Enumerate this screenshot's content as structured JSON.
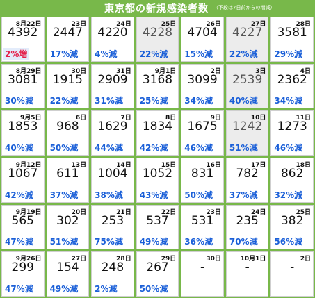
{
  "title": "東京都の新規感染者数",
  "subtitle": "（下段は7日前からの増減）",
  "colors": {
    "background": "#78b84a",
    "decrease": "#1a5fd8",
    "increase": "#e5204a"
  },
  "cells": [
    {
      "date": "8月22日",
      "count": "4392",
      "change": "2%増",
      "up": true
    },
    {
      "date": "23日",
      "count": "2447",
      "change": "17%減"
    },
    {
      "date": "24日",
      "count": "4220",
      "change": "4%減"
    },
    {
      "date": "25日",
      "count": "4228",
      "change": "22%減",
      "dim": true
    },
    {
      "date": "26日",
      "count": "4704",
      "change": "15%減"
    },
    {
      "date": "27日",
      "count": "4227",
      "change": "22%減",
      "dim": true
    },
    {
      "date": "28日",
      "count": "3581",
      "change": "29%減"
    },
    {
      "date": "8月29日",
      "count": "3081",
      "change": "30%減"
    },
    {
      "date": "30日",
      "count": "1915",
      "change": "22%減"
    },
    {
      "date": "31日",
      "count": "2909",
      "change": "31%減"
    },
    {
      "date": "9月1日",
      "count": "3168",
      "change": "25%減"
    },
    {
      "date": "2日",
      "count": "3099",
      "change": "34%減"
    },
    {
      "date": "3日",
      "count": "2539",
      "change": "40%減",
      "dim": true
    },
    {
      "date": "4日",
      "count": "2362",
      "change": "34%減"
    },
    {
      "date": "9月5日",
      "count": "1853",
      "change": "40%減"
    },
    {
      "date": "6日",
      "count": "968",
      "change": "50%減"
    },
    {
      "date": "7日",
      "count": "1629",
      "change": "44%減"
    },
    {
      "date": "8日",
      "count": "1834",
      "change": "42%減"
    },
    {
      "date": "9日",
      "count": "1675",
      "change": "46%減"
    },
    {
      "date": "10日",
      "count": "1242",
      "change": "51%減",
      "dim": true
    },
    {
      "date": "11日",
      "count": "1273",
      "change": "46%減"
    },
    {
      "date": "9月12日",
      "count": "1067",
      "change": "42%減"
    },
    {
      "date": "13日",
      "count": "611",
      "change": "37%減"
    },
    {
      "date": "14日",
      "count": "1004",
      "change": "38%減"
    },
    {
      "date": "15日",
      "count": "1052",
      "change": "43%減"
    },
    {
      "date": "16日",
      "count": "831",
      "change": "50%減"
    },
    {
      "date": "17日",
      "count": "782",
      "change": "37%減"
    },
    {
      "date": "18日",
      "count": "862",
      "change": "32%減"
    },
    {
      "date": "9月19日",
      "count": "565",
      "change": "47%減"
    },
    {
      "date": "20日",
      "count": "302",
      "change": "51%減"
    },
    {
      "date": "21日",
      "count": "253",
      "change": "75%減"
    },
    {
      "date": "22日",
      "count": "537",
      "change": "49%減"
    },
    {
      "date": "23日",
      "count": "531",
      "change": "36%減"
    },
    {
      "date": "24日",
      "count": "235",
      "change": "70%減"
    },
    {
      "date": "25日",
      "count": "382",
      "change": "56%減"
    },
    {
      "date": "9月26日",
      "count": "299",
      "change": "47%減"
    },
    {
      "date": "27日",
      "count": "154",
      "change": "49%減"
    },
    {
      "date": "28日",
      "count": "248",
      "change": "2%減"
    },
    {
      "date": "29日",
      "count": "267",
      "change": "50%減"
    },
    {
      "date": "30日",
      "count": "-",
      "change": ""
    },
    {
      "date": "10月1日",
      "count": "-",
      "change": ""
    },
    {
      "date": "2日",
      "count": "-",
      "change": ""
    }
  ]
}
